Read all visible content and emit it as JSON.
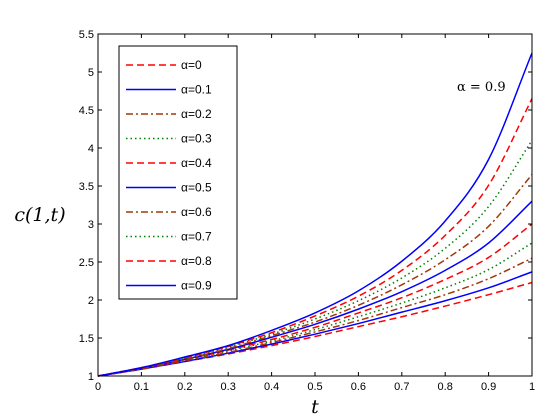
{
  "chart_data": {
    "type": "line",
    "title": "",
    "xlabel": "t",
    "ylabel": "c(1,t)",
    "xlim": [
      0,
      1
    ],
    "ylim": [
      1,
      5.5
    ],
    "xticks": [
      0,
      0.1,
      0.2,
      0.3,
      0.4,
      0.5,
      0.6,
      0.7,
      0.8,
      0.9,
      1
    ],
    "xtick_labels": [
      "0",
      "0.1",
      "0.2",
      "0.3",
      "0.4",
      "0.5",
      "0.6",
      "0.7",
      "0.8",
      "0.9",
      "1"
    ],
    "yticks": [
      1,
      1.5,
      2,
      2.5,
      3,
      3.5,
      4,
      4.5,
      5,
      5.5
    ],
    "ytick_labels": [
      "1",
      "1.5",
      "2",
      "2.5",
      "3",
      "3.5",
      "4",
      "4.5",
      "5",
      "5.5"
    ],
    "grid": false,
    "legend_position": "top-left",
    "annotation": "α = 0.9",
    "x": [
      0,
      0.1,
      0.2,
      0.3,
      0.4,
      0.5,
      0.6,
      0.7,
      0.8,
      0.9,
      1.0
    ],
    "series": [
      {
        "name": "α=0",
        "color": "#ff0000",
        "dash": "dashed",
        "values": [
          1.0,
          1.09,
          1.19,
          1.29,
          1.4,
          1.52,
          1.65,
          1.78,
          1.92,
          2.07,
          2.23
        ]
      },
      {
        "name": "α=0.1",
        "color": "#0000ff",
        "dash": "solid",
        "values": [
          1.0,
          1.09,
          1.19,
          1.3,
          1.42,
          1.55,
          1.69,
          1.84,
          1.99,
          2.16,
          2.37
        ]
      },
      {
        "name": "α=0.2",
        "color": "#a0380a",
        "dash": "dashdot",
        "values": [
          1.0,
          1.09,
          1.2,
          1.31,
          1.44,
          1.58,
          1.73,
          1.9,
          2.07,
          2.28,
          2.55
        ]
      },
      {
        "name": "α=0.3",
        "color": "#008000",
        "dash": "dotted",
        "values": [
          1.0,
          1.1,
          1.21,
          1.33,
          1.46,
          1.61,
          1.78,
          1.96,
          2.16,
          2.4,
          2.75
        ]
      },
      {
        "name": "α=0.4",
        "color": "#ff0000",
        "dash": "dashed",
        "values": [
          1.0,
          1.1,
          1.21,
          1.34,
          1.48,
          1.64,
          1.83,
          2.03,
          2.27,
          2.56,
          3.0
        ]
      },
      {
        "name": "α=0.5",
        "color": "#0000ff",
        "dash": "solid",
        "values": [
          1.0,
          1.1,
          1.22,
          1.35,
          1.51,
          1.68,
          1.88,
          2.11,
          2.39,
          2.75,
          3.3
        ]
      },
      {
        "name": "α=0.6",
        "color": "#a0380a",
        "dash": "dashdot",
        "values": [
          1.0,
          1.1,
          1.22,
          1.36,
          1.53,
          1.71,
          1.93,
          2.2,
          2.53,
          2.97,
          3.65
        ]
      },
      {
        "name": "α=0.7",
        "color": "#008000",
        "dash": "dotted",
        "values": [
          1.0,
          1.11,
          1.23,
          1.38,
          1.55,
          1.75,
          1.99,
          2.29,
          2.68,
          3.23,
          4.1
        ]
      },
      {
        "name": "α=0.8",
        "color": "#ff0000",
        "dash": "dashed",
        "values": [
          1.0,
          1.11,
          1.24,
          1.39,
          1.57,
          1.79,
          2.05,
          2.39,
          2.85,
          3.51,
          4.65
        ]
      },
      {
        "name": "α=0.9",
        "color": "#0000ff",
        "dash": "solid",
        "values": [
          1.0,
          1.11,
          1.25,
          1.4,
          1.6,
          1.83,
          2.12,
          2.51,
          3.04,
          3.85,
          5.25
        ]
      }
    ]
  }
}
